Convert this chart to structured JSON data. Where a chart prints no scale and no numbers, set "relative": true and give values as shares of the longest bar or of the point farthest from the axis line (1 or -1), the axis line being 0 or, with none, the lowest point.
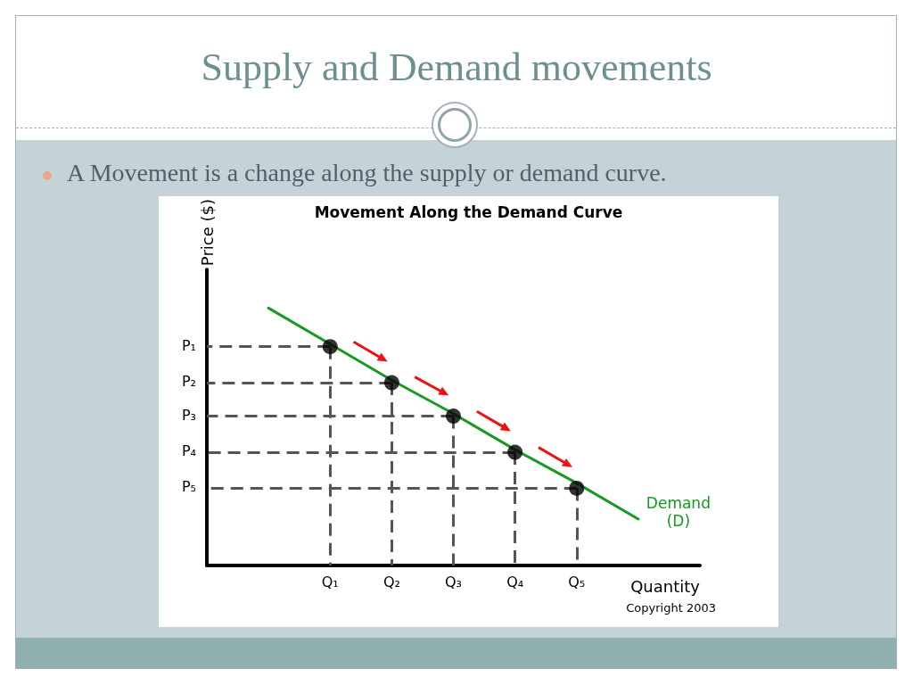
{
  "chart_data": {
    "type": "line",
    "title": "Supply and Demand movements",
    "subtitle": "A Movement is a change along the supply or demand curve.",
    "annotations": [
      "Movement Along the Demand Curve",
      "Copyright 2003",
      "P₁",
      "P₂",
      "P₃",
      "P₄",
      "P₅"
    ],
    "xlabel": "Quantity",
    "ylabel": "Price ($)",
    "relative": true,
    "categories": [
      null,
      null,
      "Q₁",
      "Q₂",
      "Q₃",
      "Q₄",
      "Q₅",
      null,
      null
    ],
    "series": [
      {
        "name": "Demand (D)",
        "color": "#169a22",
        "line_style": "solid",
        "marker": "none",
        "values": [
          null,
          1.0,
          0.86,
          0.72,
          0.59,
          0.45,
          0.32,
          0.18,
          null
        ]
      },
      {
        "type": "scatter",
        "color": "#000000",
        "marker": "circle",
        "values": [
          null,
          null,
          0.85,
          0.71,
          0.58,
          0.44,
          0.3,
          null,
          null
        ]
      }
    ]
  }
}
